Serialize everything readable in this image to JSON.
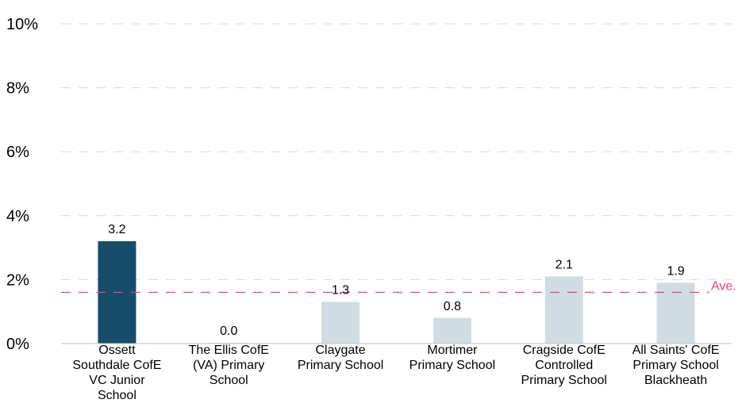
{
  "chart_data": {
    "type": "bar",
    "categories": [
      "Ossett Southdale CofE VC Junior School",
      "The Ellis CofE (VA) Primary School",
      "Claygate Primary School",
      "Mortimer Primary School",
      "Cragside CofE Controlled Primary School",
      "All Saints' CofE Primary School Blackheath"
    ],
    "category_lines": [
      [
        "Ossett",
        "Southdale CofE",
        "VC Junior",
        "School"
      ],
      [
        "The Ellis CofE",
        "(VA) Primary",
        "School"
      ],
      [
        "Claygate",
        "Primary School"
      ],
      [
        "Mortimer",
        "Primary School"
      ],
      [
        "Cragside CofE",
        "Controlled",
        "Primary School"
      ],
      [
        "All Saints' CofE",
        "Primary School",
        "Blackheath"
      ]
    ],
    "values": [
      3.2,
      0.0,
      1.3,
      0.8,
      2.1,
      1.9
    ],
    "value_labels": [
      "3.2",
      "0.0",
      "1.3",
      "0.8",
      "2.1",
      "1.9"
    ],
    "y_ticks": [
      "0%",
      "2%",
      "4%",
      "6%",
      "8%",
      "10%"
    ],
    "y_tick_values": [
      0,
      2,
      4,
      6,
      8,
      10
    ],
    "ylim": [
      0,
      10
    ],
    "average": {
      "value": 1.6,
      "label": "Ave."
    },
    "grid": true,
    "highlight_index": 0,
    "colors": {
      "highlight": "#164d6b",
      "bar": "#d0dce3",
      "grid": "#d9d9d9",
      "average": "#e83e8c",
      "axis": "#bfbfbf"
    }
  }
}
